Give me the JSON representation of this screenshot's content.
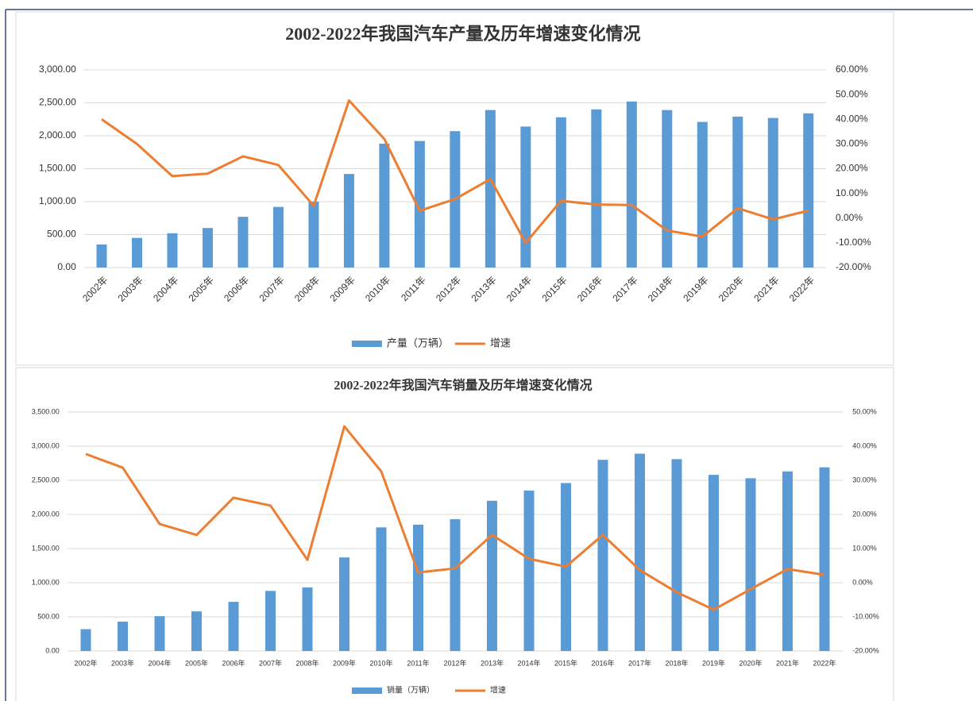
{
  "chart_data": [
    {
      "type": "combo",
      "title": "2002-2022年我国汽车产量及历年增速变化情况",
      "categories": [
        "2002年",
        "2003年",
        "2004年",
        "2005年",
        "2006年",
        "2007年",
        "2008年",
        "2009年",
        "2010年",
        "2011年",
        "2012年",
        "2013年",
        "2014年",
        "2015年",
        "2016年",
        "2017年",
        "2018年",
        "2019年",
        "2020年",
        "2021年",
        "2022年"
      ],
      "series": [
        {
          "name": "产量（万辆）",
          "type": "bar",
          "color": "#5b9bd5",
          "values": [
            350,
            450,
            520,
            600,
            770,
            920,
            1000,
            1420,
            1880,
            1920,
            2070,
            2390,
            2140,
            2280,
            2400,
            2520,
            2390,
            2210,
            2290,
            2270,
            2340
          ]
        },
        {
          "name": "增速",
          "type": "line",
          "axis": "y2",
          "color": "#ed7d31",
          "values": [
            40,
            30,
            17,
            18,
            25,
            21.5,
            5,
            47.6,
            32,
            3,
            7.7,
            15.8,
            -10,
            7,
            5.5,
            5.3,
            -5,
            -7.5,
            4,
            -0.5,
            3
          ]
        }
      ],
      "ylim": [
        0,
        3000
      ],
      "yticks": [
        {
          "value": 0,
          "label": "0.00"
        },
        {
          "value": 500,
          "label": "500.00"
        },
        {
          "value": 1000,
          "label": "1,000.00"
        },
        {
          "value": 1500,
          "label": "1,500.00"
        },
        {
          "value": 2000,
          "label": "2,000.00"
        },
        {
          "value": 2500,
          "label": "2,500.00"
        },
        {
          "value": 3000,
          "label": "3,000.00"
        }
      ],
      "y2lim": [
        -20,
        60
      ],
      "y2ticks": [
        {
          "value": -20,
          "label": "-20.00%"
        },
        {
          "value": -10,
          "label": "-10.00%"
        },
        {
          "value": 0,
          "label": "0.00%"
        },
        {
          "value": 10,
          "label": "10.00%"
        },
        {
          "value": 20,
          "label": "20.00%"
        },
        {
          "value": 30,
          "label": "30.00%"
        },
        {
          "value": 40,
          "label": "40.00%"
        },
        {
          "value": 50,
          "label": "50.00%"
        },
        {
          "value": 60,
          "label": "60.00%"
        }
      ],
      "grid": true,
      "legend": "bottom"
    },
    {
      "type": "combo",
      "title": "2002-2022年我国汽车销量及历年增速变化情况",
      "categories": [
        "2002年",
        "2003年",
        "2004年",
        "2005年",
        "2006年",
        "2007年",
        "2008年",
        "2009年",
        "2010年",
        "2011年",
        "2012年",
        "2013年",
        "2014年",
        "2015年",
        "2016年",
        "2017年",
        "2018年",
        "2019年",
        "2020年",
        "2021年",
        "2022年"
      ],
      "series": [
        {
          "name": "销量（万辆）",
          "type": "bar",
          "color": "#5b9bd5",
          "values": [
            320,
            430,
            510,
            580,
            720,
            880,
            930,
            1370,
            1810,
            1850,
            1930,
            2200,
            2350,
            2460,
            2800,
            2890,
            2810,
            2580,
            2530,
            2630,
            2690
          ]
        },
        {
          "name": "增速",
          "type": "line",
          "axis": "y2",
          "color": "#ed7d31",
          "values": [
            37.7,
            33.7,
            17.2,
            14,
            24.9,
            22.6,
            6.7,
            45.8,
            32.6,
            3,
            4.2,
            14,
            7,
            4.7,
            14,
            3.7,
            -2.8,
            -7.9,
            -1.9,
            4,
            2.3
          ]
        }
      ],
      "ylim": [
        0,
        3500
      ],
      "yticks": [
        {
          "value": 0,
          "label": "0.00"
        },
        {
          "value": 500,
          "label": "500.00"
        },
        {
          "value": 1000,
          "label": "1,000.00"
        },
        {
          "value": 1500,
          "label": "1,500.00"
        },
        {
          "value": 2000,
          "label": "2,000.00"
        },
        {
          "value": 2500,
          "label": "2,500.00"
        },
        {
          "value": 3000,
          "label": "3,000.00"
        },
        {
          "value": 3500,
          "label": "3,500.00"
        }
      ],
      "y2lim": [
        -20,
        50
      ],
      "y2ticks": [
        {
          "value": -20,
          "label": "-20.00%"
        },
        {
          "value": -10,
          "label": "-10.00%"
        },
        {
          "value": 0,
          "label": "0.00%"
        },
        {
          "value": 10,
          "label": "10.00%"
        },
        {
          "value": 20,
          "label": "20.00%"
        },
        {
          "value": 30,
          "label": "30.00%"
        },
        {
          "value": 40,
          "label": "40.00%"
        },
        {
          "value": 50,
          "label": "50.00%"
        }
      ],
      "grid": true,
      "legend": "bottom"
    }
  ]
}
